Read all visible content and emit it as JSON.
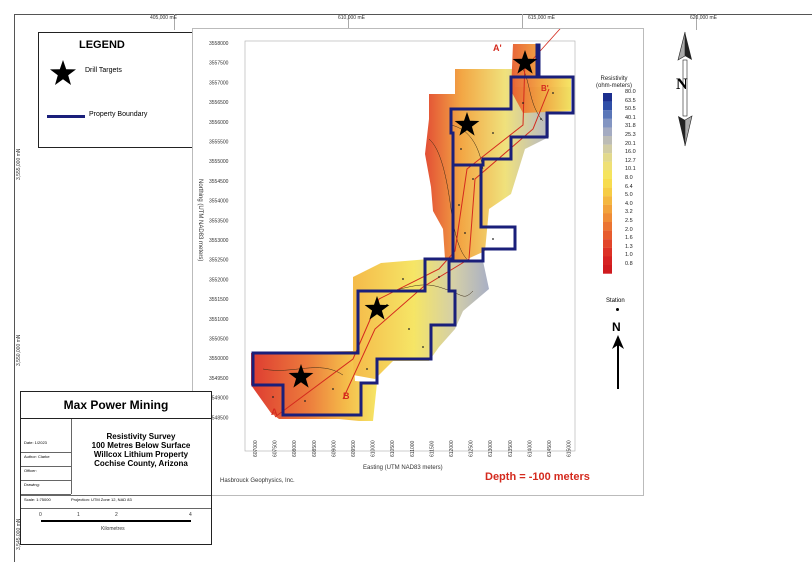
{
  "frame": {
    "top_ticks": [
      "405,000 mE",
      "610,000 mE",
      "615,000 mE",
      "620,000 mE"
    ],
    "left_ticks": [
      "3,555,000 mN",
      "3,550,000 mN",
      "3,545,000 mN"
    ]
  },
  "legend": {
    "title": "LEGEND",
    "drill_label": "Drill Targets",
    "boundary_label": "Property Boundary"
  },
  "map": {
    "ylabel": "Northing (UTM NAD83 meters)",
    "xlabel": "Easting (UTM NAD83 meters)",
    "y_ticks": [
      "3558000",
      "3557500",
      "3557000",
      "3556500",
      "3556000",
      "3555500",
      "3555000",
      "3554500",
      "3554000",
      "3553500",
      "3553000",
      "3552500",
      "3552000",
      "3551500",
      "3551000",
      "3550500",
      "3550000",
      "3549500",
      "3549000",
      "3548500"
    ],
    "x_ticks": [
      "607000",
      "607500",
      "608000",
      "608500",
      "609000",
      "609500",
      "610000",
      "610500",
      "611000",
      "611500",
      "612000",
      "612500",
      "613000",
      "613500",
      "614000",
      "614500",
      "615000"
    ],
    "section_labels": [
      "A'",
      "B'",
      "A",
      "B"
    ],
    "credit": "Hasbrouck Geophysics, Inc.",
    "depth": "Depth = -100 meters"
  },
  "colorbar": {
    "title": "Resistivity\n(ohm-meters)",
    "labels": [
      "80.0",
      "63.5",
      "50.5",
      "40.1",
      "31.8",
      "25.3",
      "20.1",
      "16.0",
      "12.7",
      "10.1",
      "8.0",
      "6.4",
      "5.0",
      "4.0",
      "3.2",
      "2.5",
      "2.0",
      "1.6",
      "1.3",
      "1.0",
      "0.8"
    ],
    "colors": [
      "#1c2f8f",
      "#2f4fa8",
      "#5a76b8",
      "#8395c2",
      "#a4abc2",
      "#bcbcb6",
      "#d1cca4",
      "#e2d98c",
      "#efe075",
      "#f5e45e",
      "#f7dc4e",
      "#f6cc45",
      "#f4b740",
      "#f2a23b",
      "#ef8c36",
      "#eb7432",
      "#e75c2e",
      "#e2452a",
      "#dc3126",
      "#d62222",
      "#cf1a1e"
    ]
  },
  "titleblock": {
    "company": "Max Power Mining",
    "title_lines": [
      "Resistivity Survey",
      "100 Metres Below Surface",
      "Willcox Lithium Property",
      "Cochise County, Arizona"
    ],
    "rows": [
      "Date: 1/2023",
      "Author: Clarke",
      "Officer:",
      "Drawing:"
    ],
    "scale": "Scale: 1:75000",
    "projection": "Projection: UTM Zone 12, NAD 83",
    "scale_ticks": [
      "0",
      "1",
      "2",
      "4"
    ],
    "scale_unit": "Kilometres"
  },
  "north": {
    "letter": "N"
  },
  "station": {
    "label": "Station",
    "arrow_letter": "N"
  }
}
